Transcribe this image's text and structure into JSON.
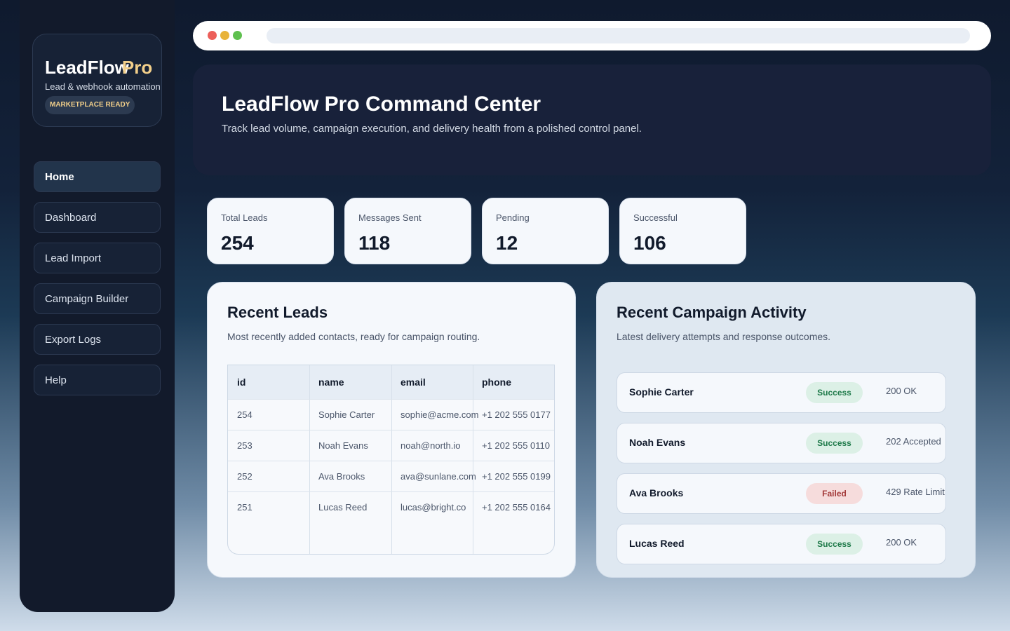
{
  "sidebar": {
    "brand": "LeadFlow",
    "brand_accent": "Pro",
    "tagline": "Lead & webhook automation",
    "badge": "MARKETPLACE READY",
    "nav": [
      "Home",
      "Dashboard",
      "Lead Import",
      "Campaign Builder",
      "Export Logs",
      "Help"
    ]
  },
  "header": {
    "title": "LeadFlow Pro Command Center",
    "subtitle": "Track lead volume, campaign execution, and delivery health from a polished control panel."
  },
  "stats": [
    {
      "label": "Total Leads",
      "value": 254
    },
    {
      "label": "Messages Sent",
      "value": 118
    },
    {
      "label": "Pending",
      "value": 12
    },
    {
      "label": "Successful",
      "value": 106
    }
  ],
  "leads": {
    "title": "Recent Leads",
    "subtitle": "Most recently added contacts, ready for campaign routing.",
    "columns": [
      "id",
      "name",
      "email",
      "phone"
    ],
    "rows": [
      [
        "254",
        "Sophie Carter",
        "sophie@acme.com",
        "+1 202 555 0177"
      ],
      [
        "253",
        "Noah Evans",
        "noah@north.io",
        "+1 202 555 0110"
      ],
      [
        "252",
        "Ava Brooks",
        "ava@sunlane.com",
        "+1 202 555 0199"
      ],
      [
        "251",
        "Lucas Reed",
        "lucas@bright.co",
        "+1 202 555 0164"
      ]
    ]
  },
  "activity": {
    "title": "Recent Campaign Activity",
    "subtitle": "Latest delivery attempts and response outcomes.",
    "items": [
      {
        "name": "Sophie Carter",
        "status": "Success",
        "response": "200 OK"
      },
      {
        "name": "Noah Evans",
        "status": "Success",
        "response": "202 Accepted"
      },
      {
        "name": "Ava Brooks",
        "status": "Failed",
        "response": "429 Rate Limit"
      },
      {
        "name": "Lucas Reed",
        "status": "Success",
        "response": "200 OK"
      }
    ]
  }
}
